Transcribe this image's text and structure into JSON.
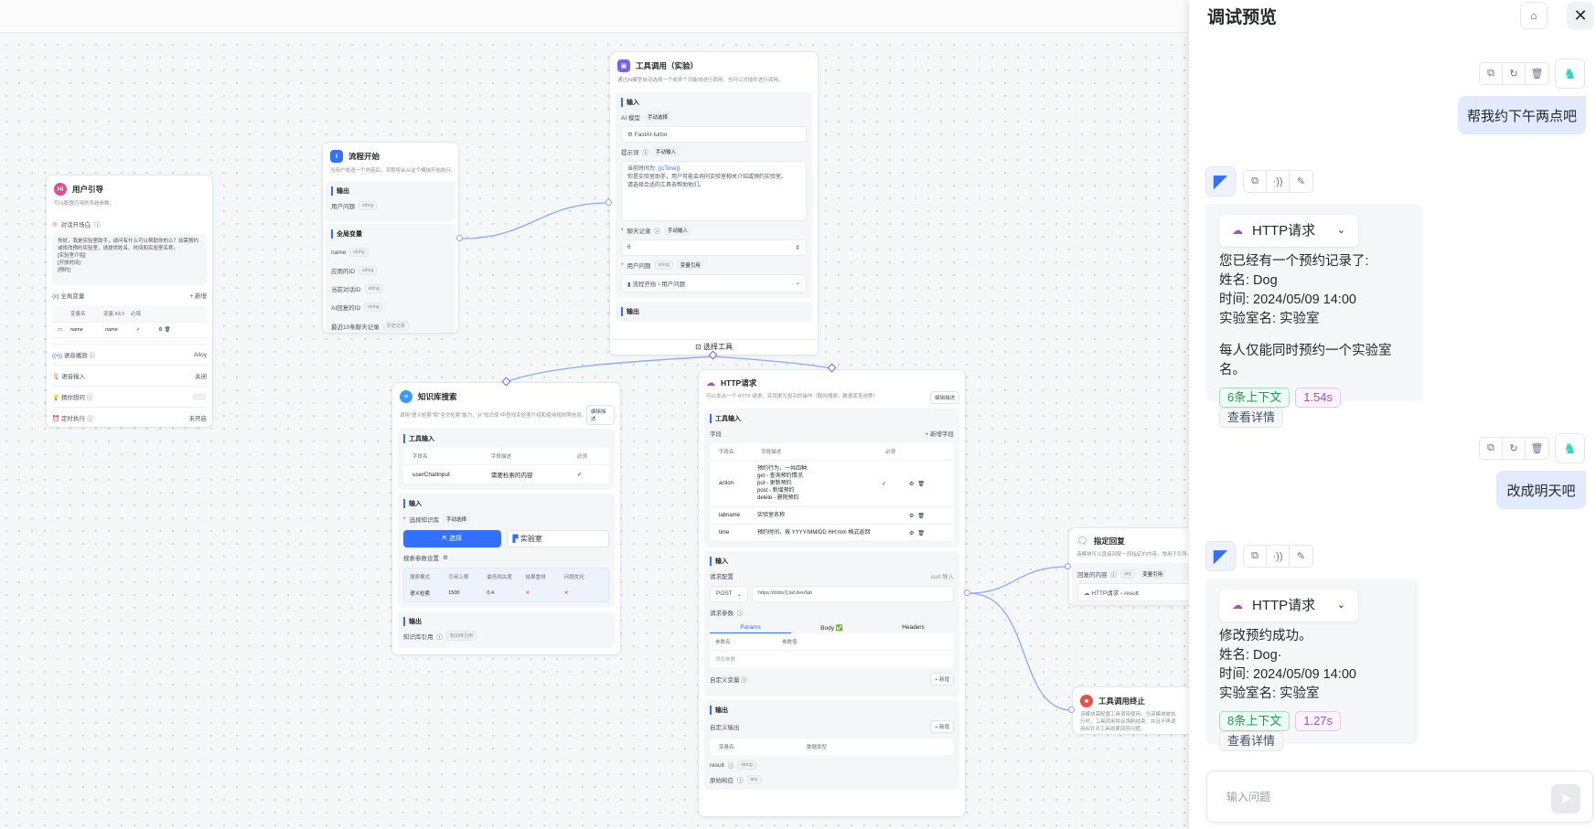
{
  "canvas": {
    "user_guide": {
      "title": "用户引导",
      "icon": "Hi",
      "desc": "可以配置应用的系统参数。",
      "opening_label": "对话开场白",
      "opening_text": "你好，我是实验室助手，请问有什么可以帮助你的么？如需预约或修改预约实验室，请提供姓名、时间和实验室名称。\n[实验室介绍]\n[开放时间]\n[预约]",
      "global_vars_label": "全局变量",
      "add_label": "+ 新增",
      "table_headers": [
        "变量名",
        "变量 KEY",
        "必填"
      ],
      "table_rows": [
        {
          "name": "name",
          "key": "name",
          "required": "✓"
        }
      ],
      "tts_label": "语音播放",
      "tts_value": "Alloy",
      "voice_input_label": "语音输入",
      "voice_input_value": "关闭",
      "guess_label": "猜你想问",
      "guess_enabled": false,
      "schedule_label": "定时执行",
      "schedule_value": "未开启"
    },
    "flow_start": {
      "title": "流程开始",
      "desc": "当用户发送一个内容后，流程将会从这个模块开始执行。",
      "output_label": "输出",
      "outputs": [
        {
          "name": "用户问题",
          "type": "string"
        }
      ],
      "globals_label": "全局变量",
      "globals": [
        {
          "name": "name",
          "type": "string"
        },
        {
          "name": "应用的ID",
          "type": "string"
        },
        {
          "name": "当前对话ID",
          "type": "string"
        },
        {
          "name": "AI回复的ID",
          "type": "string"
        },
        {
          "name": "最近10条聊天记录",
          "type": "历史记录"
        },
        {
          "name": "当前时间",
          "type": "string"
        }
      ]
    },
    "tool_call": {
      "title": "工具调用（实验）",
      "desc": "通过AI模型自动选择一个或多个功能块进行调用，也可以对插件进行调用。",
      "input_label": "输入",
      "model_label": "AI 模型",
      "model_mode": "手动选择",
      "model_value": "FastAI-turbo",
      "prompt_label": "提示词",
      "prompt_mode": "手动输入",
      "prompt_line1": "当前时间为: ",
      "prompt_var": "{{cTime}}",
      "prompt_rest": "你是实验室助手，用户可能会询问实验室相关介绍或预约实验室。\n请选择合适的工具去帮助他们。",
      "history_label": "聊天记录",
      "history_mode": "手动输入",
      "history_value": "6",
      "question_label": "用户问题",
      "question_type": "string",
      "question_mode": "变量引用",
      "question_ref_node": "流程开始",
      "question_ref_field": "用户问题",
      "output_label": "输出",
      "select_tool_label": "选择工具"
    },
    "knowledge": {
      "title": "知识库搜索",
      "desc": "调用\"语义检索\"和\"全文检索\"能力，从\"知识库\"中查找实验室介绍和使用规则等信息。",
      "edit_desc": "编辑描述",
      "tool_input_label": "工具输入",
      "tool_headers": [
        "字段名",
        "字段描述",
        "必须"
      ],
      "tool_rows": [
        {
          "name": "userChatInput",
          "desc": "需要检索的内容",
          "required": "✓"
        }
      ],
      "input_label": "输入",
      "select_kb_label": "选择知识库",
      "select_kb_mode": "手动选择",
      "select_btn": "选择",
      "kb_name": "实验室",
      "search_params_label": "搜索参数设置",
      "param_headers": [
        "搜索模式",
        "引用上限",
        "最低相关度",
        "结果重排",
        "问题优化"
      ],
      "param_values": [
        "语义检索",
        "1500",
        "0.4",
        "✕",
        "✕"
      ],
      "output_label": "输出",
      "quote_label": "知识库引用",
      "quote_type": "知识库引用"
    },
    "http": {
      "title": "HTTP请求",
      "desc": "可以发出一个 HTTP 请求，实现更为复杂的操作（联网搜索、数据库查询等）",
      "edit_desc": "编辑描述",
      "tool_input_label": "工具输入",
      "fields_label": "字段",
      "add_field": "+ 新增字段",
      "field_headers": [
        "字段名",
        "字段描述",
        "必须"
      ],
      "fields": [
        {
          "name": "action",
          "desc": "预约行为，一共四种:\nget - 查询预约情况\nput - 更新预约\npost - 新增预约\ndelete - 删除预约",
          "required": "✓"
        },
        {
          "name": "labname",
          "desc": "实验室名称",
          "required": ""
        },
        {
          "name": "time",
          "desc": "预约时间，按 YYYY/MM/DD HH:mm 格式返回",
          "required": ""
        }
      ],
      "input_label": "输入",
      "req_config_label": "请求配置",
      "curl_import": "curl 导入",
      "method": "POST",
      "url": "https://dxbs7j.laf.dev/lab",
      "req_params_label": "请求参数",
      "tabs": [
        "Params",
        "Body ✅",
        "Headers"
      ],
      "param_headers": [
        "参数名",
        "参数值"
      ],
      "add_param_placeholder": "添加参数",
      "custom_var_label": "自定义变量",
      "add_label": "+ 新增",
      "output_label": "输出",
      "custom_output_label": "自定义输出",
      "output_headers": [
        "变量名",
        "数据类型"
      ],
      "outputs": [
        {
          "name": "result",
          "type": "string"
        },
        {
          "name": "原始响应",
          "type": "any"
        }
      ]
    },
    "reply": {
      "title": "指定回复",
      "desc": "该模块可以直接回复一段指定的内容。常用于引导、",
      "content_label": "回复的内容",
      "content_type": "any",
      "content_mode": "变量引用",
      "ref_node": "HTTP请求",
      "ref_field": "result"
    },
    "tool_end": {
      "title": "工具调用终止",
      "desc": "该模块需配置工具调用使用。当该模块被执行时，工具调用将会强制结束，并且不再调用AI针对工具结果回答问题。"
    }
  },
  "panel": {
    "title": "调试预览",
    "clean_icon": "broom-icon",
    "close_icon": "close-icon",
    "messages": [
      {
        "role": "user",
        "text": "帮我约下午两点吧"
      },
      {
        "role": "ai",
        "module": "HTTP请求",
        "lines": [
          "您已经有一个预约记录了:",
          "姓名:  Dog",
          "时间: 2024/05/09 14:00",
          "实验室名: 实验室",
          "",
          "每人仅能同时预约一个实验室名。"
        ],
        "context": "6条上下文",
        "duration": "1.54s",
        "detail": "查看详情"
      },
      {
        "role": "user",
        "text": "改成明天吧"
      },
      {
        "role": "ai",
        "module": "HTTP请求",
        "lines": [
          "修改预约成功。",
          "姓名:  Dog·",
          "时间: 2024/05/09 14:00",
          "实验室名: 实验室"
        ],
        "context": "8条上下文",
        "duration": "1.27s",
        "detail": "查看详情"
      }
    ],
    "input_placeholder": "输入问题"
  },
  "colors": {
    "accent": "#3370ff",
    "user_bubble": "#e1eaff",
    "context_tag": "#13a05c",
    "duration_tag": "#9e53c1",
    "edge": "#8aa8ff"
  }
}
